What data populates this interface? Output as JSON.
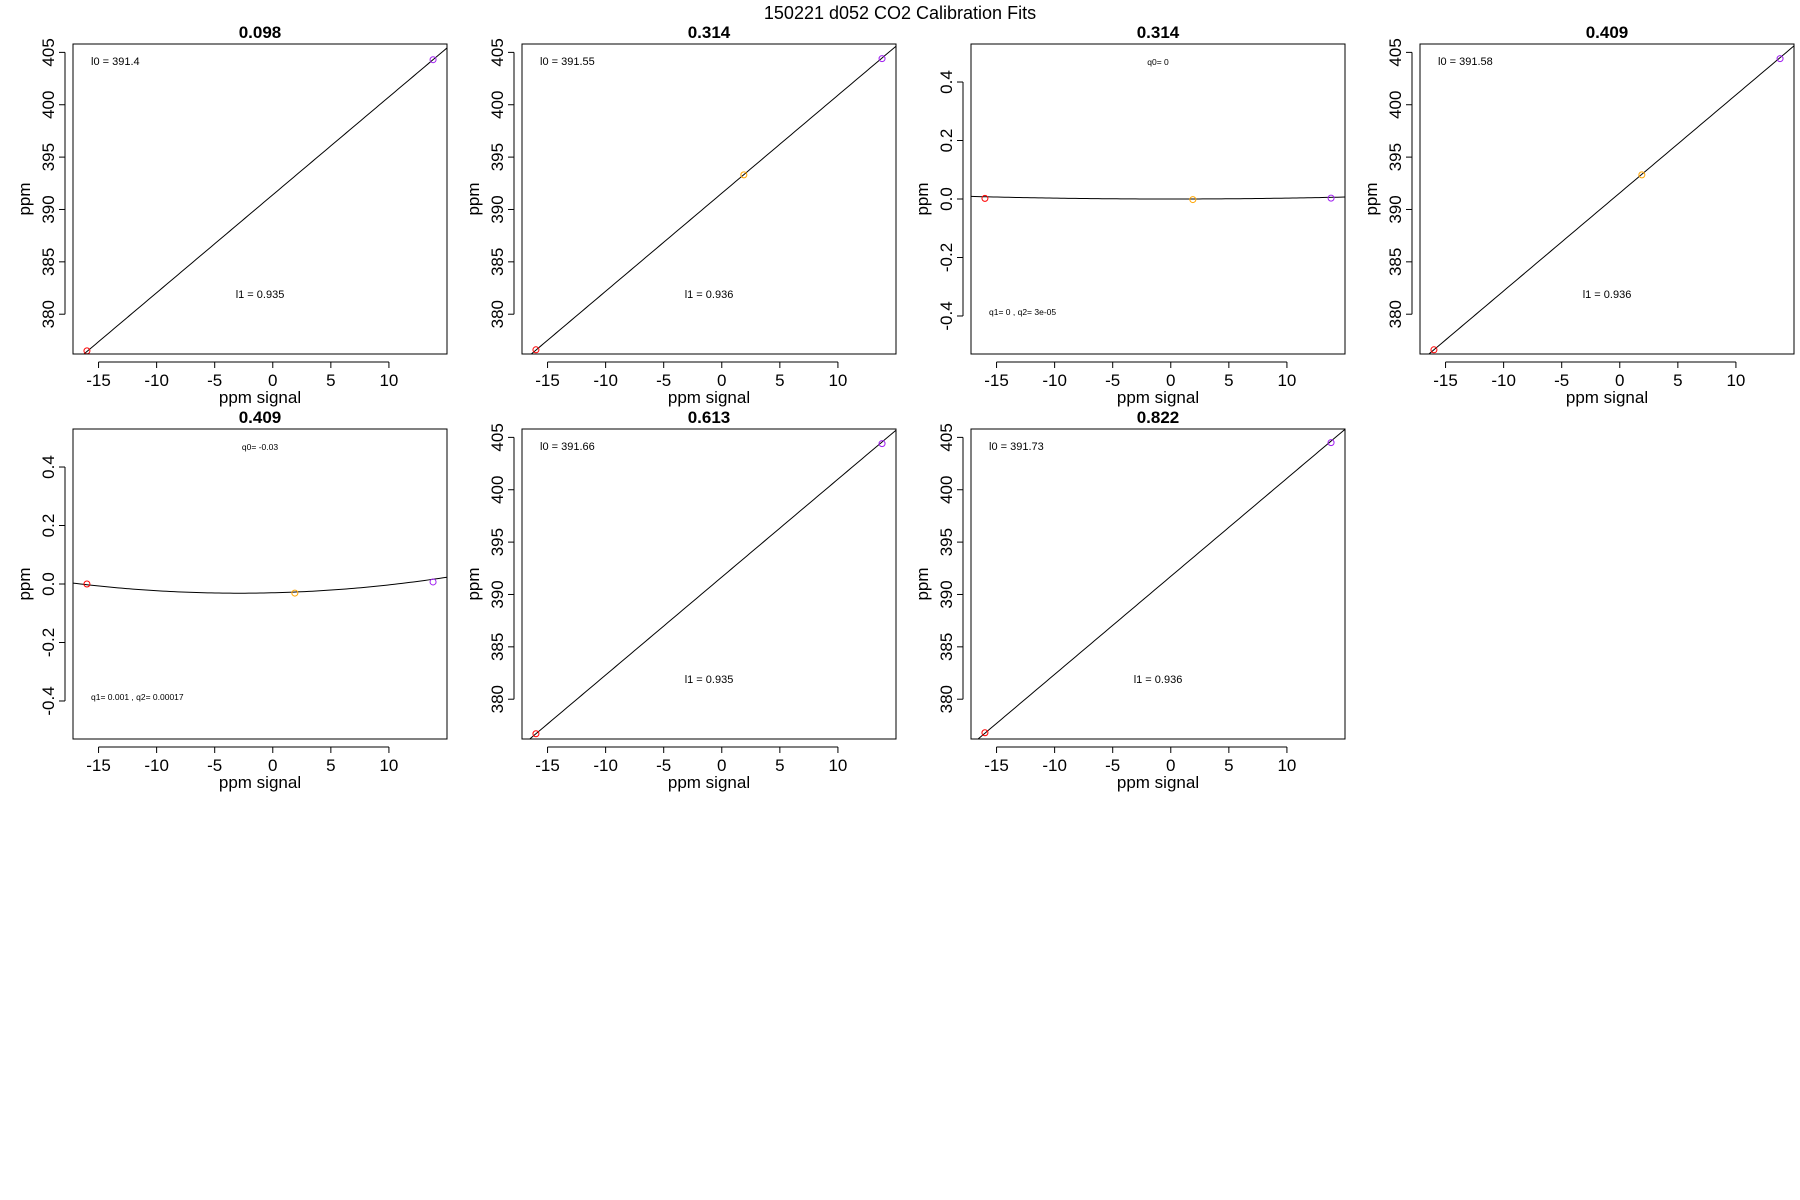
{
  "figure": {
    "title": "150221   d052   CO2 Calibration Fits"
  },
  "colors": {
    "low": "#ff0000",
    "mid": "#ffa500",
    "high": "#a020f0",
    "line": "#000000"
  },
  "chart_data": [
    {
      "type": "scatter",
      "fit": "linear",
      "title": "0.098",
      "xlabel": "ppm signal",
      "ylabel": "ppm",
      "xlim": [
        -17.2,
        15.0
      ],
      "ylim": [
        376.2,
        405.8
      ],
      "xticks": [
        -15,
        -10,
        -5,
        0,
        5,
        10
      ],
      "yticks": [
        380,
        385,
        390,
        395,
        400,
        405
      ],
      "points": [
        {
          "x": -16.0,
          "y": 376.5,
          "color": "#ff0000"
        },
        {
          "x": 13.8,
          "y": 404.3,
          "color": "#a020f0"
        }
      ],
      "intercept": 391.4,
      "slope": 0.935,
      "annotations": {
        "top": "l0 =  391.4",
        "bottom": "l1 =  0.935"
      }
    },
    {
      "type": "scatter",
      "fit": "linear",
      "title": "0.314",
      "xlabel": "ppm signal",
      "ylabel": "ppm",
      "xlim": [
        -17.2,
        15.0
      ],
      "ylim": [
        376.2,
        405.8
      ],
      "xticks": [
        -15,
        -10,
        -5,
        0,
        5,
        10
      ],
      "yticks": [
        380,
        385,
        390,
        395,
        400,
        405
      ],
      "points": [
        {
          "x": -16.0,
          "y": 376.6,
          "color": "#ff0000"
        },
        {
          "x": 1.9,
          "y": 393.3,
          "color": "#ffa500"
        },
        {
          "x": 13.8,
          "y": 404.4,
          "color": "#a020f0"
        }
      ],
      "intercept": 391.55,
      "slope": 0.936,
      "annotations": {
        "top": "l0 =  391.55",
        "bottom": "l1 =  0.936"
      }
    },
    {
      "type": "scatter",
      "fit": "quadratic",
      "title": "0.314",
      "xlabel": "ppm signal",
      "ylabel": "ppm",
      "xlim": [
        -17.2,
        15.0
      ],
      "ylim": [
        -0.53,
        0.53
      ],
      "xticks": [
        -15,
        -10,
        -5,
        0,
        5,
        10
      ],
      "yticks": [
        -0.4,
        -0.2,
        0.0,
        0.2,
        0.4
      ],
      "points": [
        {
          "x": -16.0,
          "y": 0.002,
          "color": "#ff0000"
        },
        {
          "x": 1.9,
          "y": -0.002,
          "color": "#ffa500"
        },
        {
          "x": 13.8,
          "y": 0.003,
          "color": "#a020f0"
        }
      ],
      "q0": 0,
      "q1": 0,
      "q2": 3e-05,
      "annotations": {
        "top": "q0= 0",
        "bottom": "q1= 0 ,  q2= 3e-05"
      }
    },
    {
      "type": "scatter",
      "fit": "linear",
      "title": "0.409",
      "xlabel": "ppm signal",
      "ylabel": "ppm",
      "xlim": [
        -17.2,
        15.0
      ],
      "ylim": [
        376.2,
        405.8
      ],
      "xticks": [
        -15,
        -10,
        -5,
        0,
        5,
        10
      ],
      "yticks": [
        380,
        385,
        390,
        395,
        400,
        405
      ],
      "points": [
        {
          "x": -16.0,
          "y": 376.6,
          "color": "#ff0000"
        },
        {
          "x": 1.9,
          "y": 393.3,
          "color": "#ffa500"
        },
        {
          "x": 13.8,
          "y": 404.4,
          "color": "#a020f0"
        }
      ],
      "intercept": 391.58,
      "slope": 0.936,
      "annotations": {
        "top": "l0 =  391.58",
        "bottom": "l1 =  0.936"
      }
    },
    {
      "type": "scatter",
      "fit": "quadratic",
      "title": "0.409",
      "xlabel": "ppm signal",
      "ylabel": "ppm",
      "xlim": [
        -17.2,
        15.0
      ],
      "ylim": [
        -0.53,
        0.53
      ],
      "xticks": [
        -15,
        -10,
        -5,
        0,
        5,
        10
      ],
      "yticks": [
        -0.4,
        -0.2,
        0.0,
        0.2,
        0.4
      ],
      "points": [
        {
          "x": -16.0,
          "y": 0.0,
          "color": "#ff0000"
        },
        {
          "x": 1.9,
          "y": -0.031,
          "color": "#ffa500"
        },
        {
          "x": 13.8,
          "y": 0.007,
          "color": "#a020f0"
        }
      ],
      "q0": -0.03,
      "q1": 0.001,
      "q2": 0.00017,
      "annotations": {
        "top": "q0= -0.03",
        "bottom": "q1= 0.001 ,  q2= 0.00017"
      }
    },
    {
      "type": "scatter",
      "fit": "linear",
      "title": "0.613",
      "xlabel": "ppm signal",
      "ylabel": "ppm",
      "xlim": [
        -17.2,
        15.0
      ],
      "ylim": [
        376.2,
        405.8
      ],
      "xticks": [
        -15,
        -10,
        -5,
        0,
        5,
        10
      ],
      "yticks": [
        380,
        385,
        390,
        395,
        400,
        405
      ],
      "points": [
        {
          "x": -16.0,
          "y": 376.7,
          "color": "#ff0000"
        },
        {
          "x": 13.8,
          "y": 404.4,
          "color": "#a020f0"
        }
      ],
      "intercept": 391.66,
      "slope": 0.935,
      "annotations": {
        "top": "l0 =  391.66",
        "bottom": "l1 =  0.935"
      }
    },
    {
      "type": "scatter",
      "fit": "linear",
      "title": "0.822",
      "xlabel": "ppm signal",
      "ylabel": "ppm",
      "xlim": [
        -17.2,
        15.0
      ],
      "ylim": [
        376.2,
        405.8
      ],
      "xticks": [
        -15,
        -10,
        -5,
        0,
        5,
        10
      ],
      "yticks": [
        380,
        385,
        390,
        395,
        400,
        405
      ],
      "points": [
        {
          "x": -16.0,
          "y": 376.8,
          "color": "#ff0000"
        },
        {
          "x": 13.8,
          "y": 404.5,
          "color": "#a020f0"
        }
      ],
      "intercept": 391.73,
      "slope": 0.936,
      "annotations": {
        "top": "l0 =  391.73",
        "bottom": "l1 =  0.936"
      }
    }
  ]
}
